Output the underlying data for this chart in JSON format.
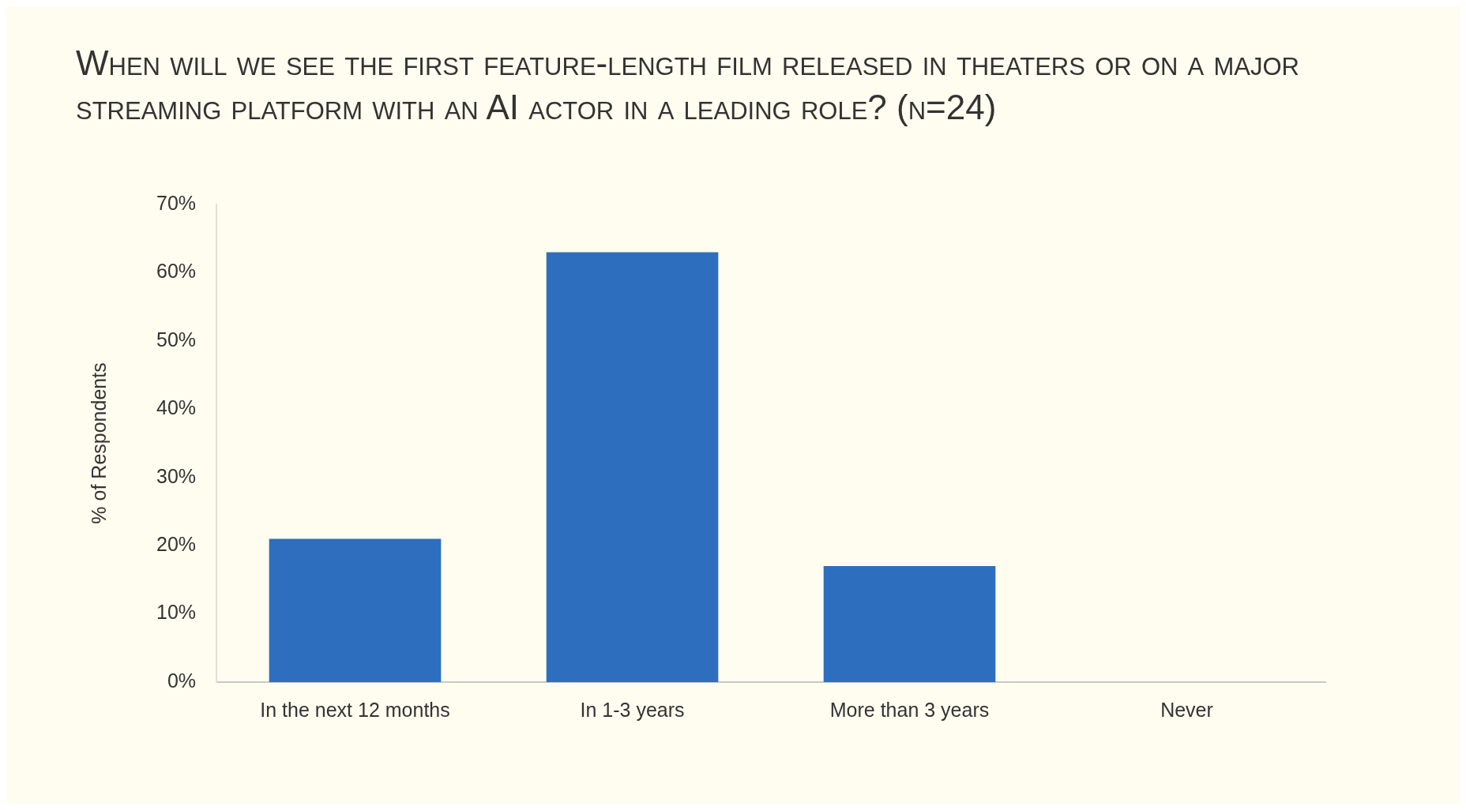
{
  "chart_data": {
    "type": "bar",
    "title": "When will we see the first feature-length film released in theaters or on a major streaming platform with an AI actor in a leading role? (n=24)",
    "ylabel": "% of Respondents",
    "categories": [
      "In the next 12 months",
      "In 1-3 years",
      "More than 3 years",
      "Never"
    ],
    "values": [
      21,
      63,
      17,
      0
    ],
    "color": "#2e6ebe",
    "ylim": [
      0,
      70
    ],
    "yticks": [
      {
        "value": 0,
        "label": "0%"
      },
      {
        "value": 10,
        "label": "10%"
      },
      {
        "value": 20,
        "label": "20%"
      },
      {
        "value": 30,
        "label": "30%"
      },
      {
        "value": 40,
        "label": "40%"
      },
      {
        "value": 50,
        "label": "50%"
      },
      {
        "value": 60,
        "label": "60%"
      },
      {
        "value": 70,
        "label": "70%"
      }
    ],
    "grid": false,
    "legend": false
  }
}
